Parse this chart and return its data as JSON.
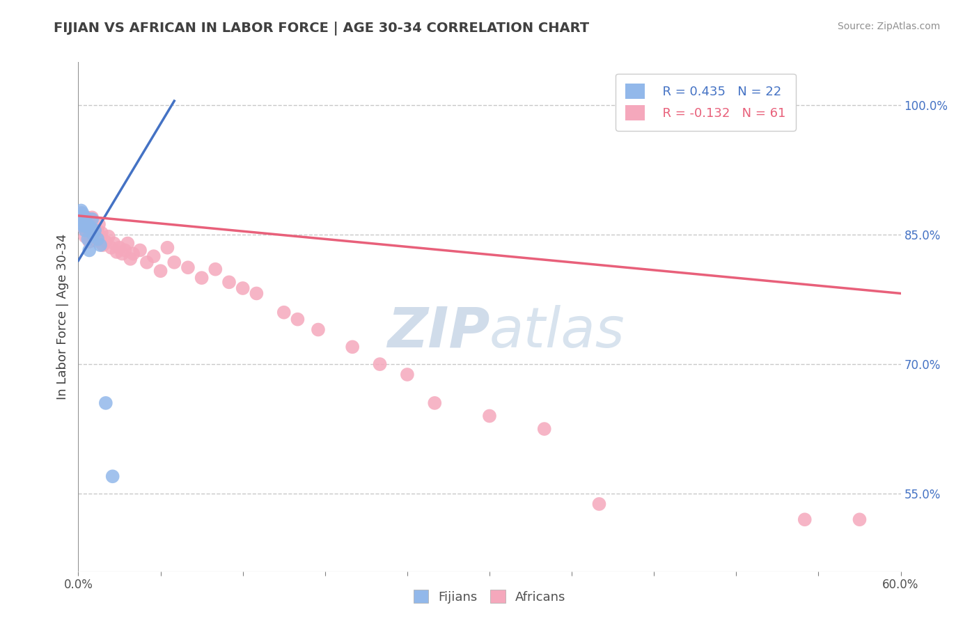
{
  "title": "FIJIAN VS AFRICAN IN LABOR FORCE | AGE 30-34 CORRELATION CHART",
  "source_text": "Source: ZipAtlas.com",
  "ylabel": "In Labor Force | Age 30-34",
  "xlim": [
    0.0,
    0.6
  ],
  "ylim": [
    0.46,
    1.05
  ],
  "xticks": [
    0.0,
    0.06,
    0.12,
    0.18,
    0.24,
    0.3,
    0.36,
    0.42,
    0.48,
    0.54,
    0.6
  ],
  "xticklabels": [
    "0.0%",
    "",
    "",
    "",
    "",
    "",
    "",
    "",
    "",
    "",
    "60.0%"
  ],
  "yticks_right": [
    0.55,
    0.7,
    0.85,
    1.0
  ],
  "ytick_right_labels": [
    "55.0%",
    "70.0%",
    "85.0%",
    "100.0%"
  ],
  "legend_fijian_R": "R = 0.435",
  "legend_fijian_N": "N = 22",
  "legend_african_R": "R = -0.132",
  "legend_african_N": "N = 61",
  "fijian_color": "#92b8ea",
  "african_color": "#f5a8bc",
  "fijian_line_color": "#4472c4",
  "african_line_color": "#e8607a",
  "legend_text_color": "#4472c4",
  "african_legend_text_color": "#e8607a",
  "title_color": "#404040",
  "watermark_color": "#d0dcea",
  "background_color": "#ffffff",
  "grid_color": "#c8c8c8",
  "fijian_points_x": [
    0.001,
    0.002,
    0.002,
    0.003,
    0.003,
    0.004,
    0.004,
    0.005,
    0.005,
    0.006,
    0.007,
    0.008,
    0.009,
    0.01,
    0.011,
    0.012,
    0.014,
    0.016,
    0.02,
    0.025,
    0.003,
    0.008
  ],
  "fijian_points_y": [
    0.87,
    0.878,
    0.872,
    0.868,
    0.875,
    0.865,
    0.86,
    0.87,
    0.855,
    0.86,
    0.845,
    0.832,
    0.858,
    0.868,
    0.85,
    0.855,
    0.845,
    0.838,
    0.655,
    0.57,
    0.862,
    0.86
  ],
  "african_points_x": [
    0.001,
    0.002,
    0.002,
    0.003,
    0.003,
    0.004,
    0.004,
    0.005,
    0.005,
    0.006,
    0.006,
    0.007,
    0.007,
    0.008,
    0.008,
    0.009,
    0.01,
    0.01,
    0.011,
    0.012,
    0.013,
    0.014,
    0.015,
    0.016,
    0.017,
    0.018,
    0.02,
    0.022,
    0.024,
    0.026,
    0.028,
    0.03,
    0.032,
    0.034,
    0.036,
    0.038,
    0.04,
    0.045,
    0.05,
    0.055,
    0.06,
    0.065,
    0.07,
    0.08,
    0.09,
    0.1,
    0.11,
    0.12,
    0.13,
    0.15,
    0.16,
    0.175,
    0.2,
    0.22,
    0.24,
    0.26,
    0.3,
    0.34,
    0.38,
    0.53,
    0.57
  ],
  "african_points_y": [
    0.872,
    0.875,
    0.868,
    0.87,
    0.865,
    0.868,
    0.858,
    0.862,
    0.848,
    0.87,
    0.855,
    0.858,
    0.865,
    0.86,
    0.842,
    0.868,
    0.855,
    0.87,
    0.848,
    0.852,
    0.843,
    0.855,
    0.862,
    0.848,
    0.852,
    0.838,
    0.842,
    0.848,
    0.835,
    0.84,
    0.83,
    0.835,
    0.828,
    0.832,
    0.84,
    0.822,
    0.828,
    0.832,
    0.818,
    0.825,
    0.808,
    0.835,
    0.818,
    0.812,
    0.8,
    0.81,
    0.795,
    0.788,
    0.782,
    0.76,
    0.752,
    0.74,
    0.72,
    0.7,
    0.688,
    0.655,
    0.64,
    0.625,
    0.538,
    0.52,
    0.52
  ],
  "fijian_line_x": [
    0.0,
    0.07
  ],
  "fijian_line_y": [
    0.82,
    1.005
  ],
  "african_line_x": [
    0.0,
    0.6
  ],
  "african_line_y": [
    0.872,
    0.782
  ]
}
